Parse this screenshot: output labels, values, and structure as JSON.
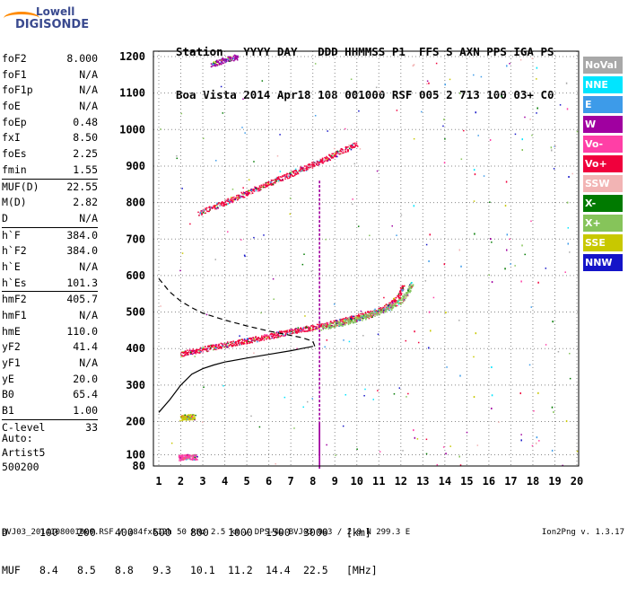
{
  "logo": {
    "line1": "Lowell",
    "line2": "DIGISONDE"
  },
  "header": {
    "labels": [
      "Station",
      "YYYY",
      "DAY",
      "DDD",
      "HHMMSS",
      "P1",
      "FFS",
      "S",
      "AXN",
      "PPS",
      "IGA",
      "PS"
    ],
    "values": [
      "Boa Vista",
      "2014",
      "Apr18",
      "108",
      "001000",
      "RSF",
      "005",
      "2",
      "713",
      "100",
      "03+",
      "C0"
    ]
  },
  "params": {
    "g1": [
      {
        "k": "foF2",
        "v": "8.000"
      },
      {
        "k": "foF1",
        "v": "N/A"
      },
      {
        "k": "foF1p",
        "v": "N/A"
      },
      {
        "k": "foE",
        "v": "N/A"
      },
      {
        "k": "foEp",
        "v": "0.48"
      },
      {
        "k": "fxI",
        "v": "8.50"
      },
      {
        "k": "foEs",
        "v": "2.25"
      },
      {
        "k": "fmin",
        "v": "1.55"
      }
    ],
    "g2": [
      {
        "k": "MUF(D)",
        "v": "22.55"
      },
      {
        "k": "M(D)",
        "v": "2.82"
      },
      {
        "k": "D",
        "v": "N/A"
      }
    ],
    "g3": [
      {
        "k": "h`F",
        "v": "384.0"
      },
      {
        "k": "h`F2",
        "v": "384.0"
      },
      {
        "k": "h`E",
        "v": "N/A"
      },
      {
        "k": "h`Es",
        "v": "101.3"
      }
    ],
    "g4": [
      {
        "k": "hmF2",
        "v": "405.7"
      },
      {
        "k": "hmF1",
        "v": "N/A"
      },
      {
        "k": "hmE",
        "v": "110.0"
      },
      {
        "k": "yF2",
        "v": "41.4"
      },
      {
        "k": "yF1",
        "v": "N/A"
      },
      {
        "k": "yE",
        "v": "20.0"
      },
      {
        "k": "B0",
        "v": "65.4"
      },
      {
        "k": "B1",
        "v": "1.00"
      }
    ],
    "g5": [
      {
        "k": "C-level",
        "v": "33"
      }
    ]
  },
  "auto": {
    "line1": "Auto:",
    "line2": "Artist5",
    "line3": "500200"
  },
  "legend": [
    {
      "label": "NoVal",
      "color": "#a8a8a8"
    },
    {
      "label": "NNE",
      "color": "#00e5ff"
    },
    {
      "label": "E",
      "color": "#3d9be9"
    },
    {
      "label": "W",
      "color": "#a000a0"
    },
    {
      "label": "Vo-",
      "color": "#ff3fa6"
    },
    {
      "label": "Vo+",
      "color": "#f0003c"
    },
    {
      "label": "SSW",
      "color": "#f2b4b4"
    },
    {
      "label": "X-",
      "color": "#007a00"
    },
    {
      "label": "X+",
      "color": "#86c45a"
    },
    {
      "label": "SSE",
      "color": "#c8c800"
    },
    {
      "label": "NNW",
      "color": "#1414c8"
    }
  ],
  "dmuf": {
    "d_label": "D",
    "d_values": [
      "100",
      "200",
      "400",
      "600",
      "800",
      "1000",
      "1500",
      "3000",
      "[km]"
    ],
    "muf_label": "MUF",
    "muf_values": [
      "8.4",
      "8.5",
      "8.8",
      "9.3",
      "10.1",
      "11.2",
      "14.4",
      "22.5",
      "[MHz]"
    ]
  },
  "footer": "BVJ03_2014108001000.RSF / 384fx512h 50 kHz 2.5 km / DPS-4D BVJ03 003 / 2.8 N 299.3 E",
  "version": "Ion2Png v. 1.3.17",
  "chart_data": {
    "type": "scatter",
    "xlim": [
      1,
      20
    ],
    "ylim": [
      80,
      1200
    ],
    "x_ticks": [
      1,
      2,
      3,
      4,
      5,
      6,
      7,
      8,
      9,
      10,
      11,
      12,
      13,
      14,
      15,
      16,
      17,
      18,
      19,
      20
    ],
    "y_ticks": [
      80,
      100,
      200,
      300,
      400,
      500,
      600,
      700,
      800,
      900,
      1000,
      1100,
      1200
    ],
    "traces": {
      "o_trace": {
        "color": "#f0003c",
        "points": [
          [
            2.0,
            385
          ],
          [
            2.5,
            392
          ],
          [
            3,
            398
          ],
          [
            3.5,
            404
          ],
          [
            4,
            410
          ],
          [
            4.5,
            415
          ],
          [
            5,
            421
          ],
          [
            5.5,
            427
          ],
          [
            6,
            433
          ],
          [
            6.5,
            440
          ],
          [
            7,
            446
          ],
          [
            7.5,
            452
          ],
          [
            8,
            458
          ],
          [
            8.5,
            464
          ],
          [
            9,
            470
          ],
          [
            9.5,
            478
          ],
          [
            10,
            486
          ],
          [
            10.5,
            495
          ],
          [
            11,
            505
          ],
          [
            11.5,
            520
          ],
          [
            11.9,
            545
          ],
          [
            12.1,
            572
          ]
        ]
      },
      "x_trace": {
        "color": "#86c45a",
        "points": [
          [
            8.4,
            458
          ],
          [
            9,
            465
          ],
          [
            9.5,
            472
          ],
          [
            10,
            480
          ],
          [
            10.5,
            490
          ],
          [
            11,
            500
          ],
          [
            11.5,
            512
          ],
          [
            12,
            530
          ],
          [
            12.3,
            555
          ],
          [
            12.5,
            580
          ]
        ]
      },
      "second_hop": {
        "color": "#f0003c",
        "points": [
          [
            2.8,
            770
          ],
          [
            3.5,
            787
          ],
          [
            4,
            800
          ],
          [
            4.5,
            813
          ],
          [
            5,
            826
          ],
          [
            5.5,
            839
          ],
          [
            6,
            852
          ],
          [
            6.5,
            865
          ],
          [
            7,
            878
          ],
          [
            7.5,
            891
          ],
          [
            8,
            904
          ],
          [
            8.5,
            918
          ],
          [
            9,
            932
          ],
          [
            9.5,
            946
          ],
          [
            10,
            962
          ]
        ]
      },
      "third_hop": {
        "color": "#a000a0",
        "points": [
          [
            3.4,
            1178
          ],
          [
            3.8,
            1186
          ],
          [
            4.2,
            1194
          ],
          [
            4.6,
            1200
          ]
        ]
      },
      "es_trace": {
        "color": "#ff3fa6",
        "points": [
          [
            1.9,
            94
          ],
          [
            2.1,
            95
          ],
          [
            2.3,
            96
          ],
          [
            2.5,
            95
          ],
          [
            2.7,
            96
          ]
        ]
      },
      "es_second": {
        "color": "#c8c800",
        "points": [
          [
            2.0,
            210
          ],
          [
            2.2,
            211
          ],
          [
            2.4,
            212
          ],
          [
            2.6,
            212
          ]
        ]
      }
    },
    "vertical_lines": [
      {
        "x": 8.3,
        "y_from": 80,
        "y_to": 860,
        "color": "#a000a0"
      }
    ],
    "profile_solid": [
      [
        1,
        225
      ],
      [
        1.5,
        260
      ],
      [
        2,
        300
      ],
      [
        2.5,
        330
      ],
      [
        3,
        345
      ],
      [
        3.5,
        355
      ],
      [
        4,
        363
      ],
      [
        5,
        374
      ],
      [
        6,
        384
      ],
      [
        7,
        394
      ],
      [
        7.5,
        400
      ],
      [
        8,
        406
      ]
    ],
    "profile_dashed": [
      [
        1,
        592
      ],
      [
        1.5,
        555
      ],
      [
        2,
        530
      ],
      [
        2.5,
        512
      ],
      [
        3,
        497
      ],
      [
        4,
        478
      ],
      [
        5,
        462
      ],
      [
        6,
        448
      ],
      [
        7,
        436
      ],
      [
        7.5,
        430
      ],
      [
        8,
        420
      ],
      [
        8.1,
        405
      ]
    ]
  }
}
